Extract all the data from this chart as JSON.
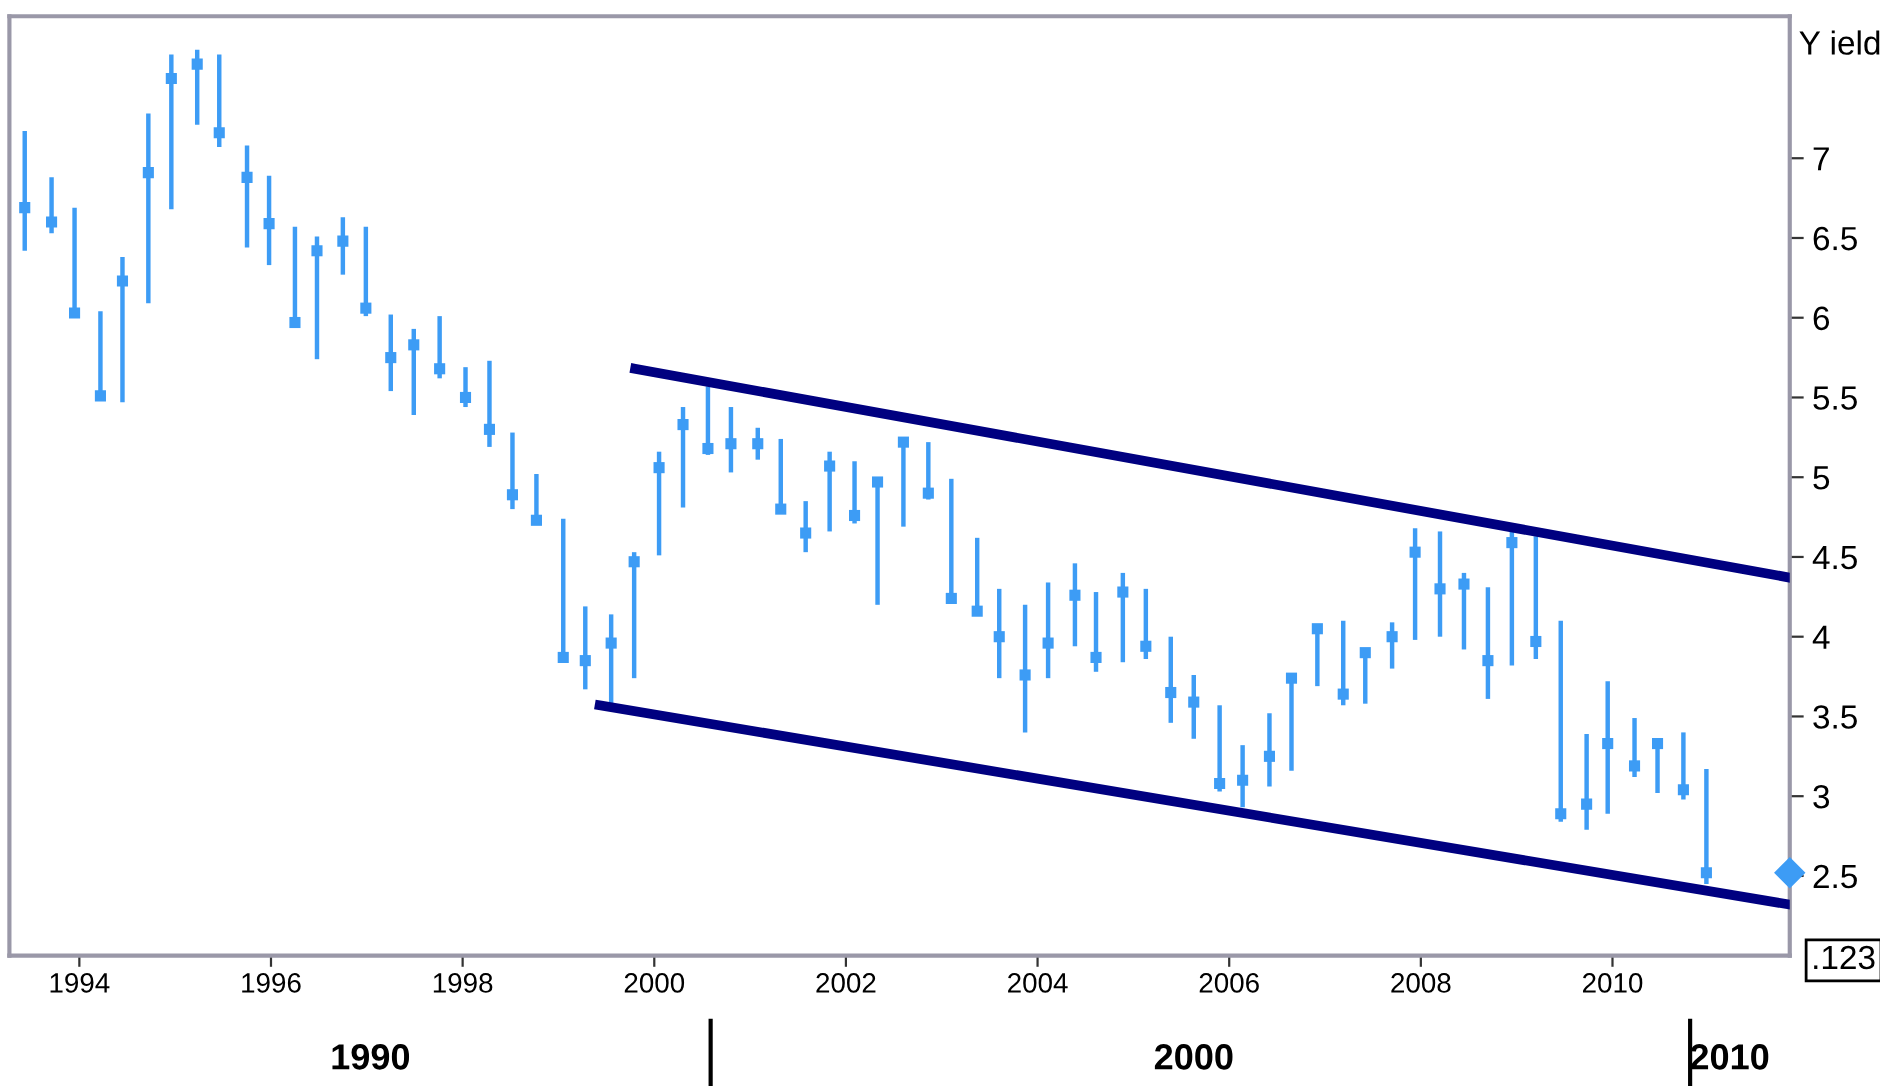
{
  "chart_data": {
    "type": "scatter",
    "ylabel": "Y ield",
    "annotations": [
      ".123",
      "1990",
      "2000",
      "2010"
    ],
    "xlim": [
      1993.27,
      2011.85
    ],
    "ylim": [
      2.0,
      7.89
    ],
    "xticks": [
      1994,
      1996,
      1998,
      2000,
      2002,
      2004,
      2006,
      2008,
      2010
    ],
    "yticks": [
      2.5,
      3,
      3.5,
      4,
      4.5,
      5,
      5.5,
      6,
      6.5,
      7
    ],
    "grid": false,
    "legend": false,
    "series": [
      {
        "color": "#3d9cf5",
        "marker": "square",
        "x": [
          1993.43,
          1993.71,
          1993.95,
          1994.22,
          1994.45,
          1994.72,
          1994.96,
          1995.23,
          1995.46,
          1995.75,
          1995.98,
          1996.25,
          1996.48,
          1996.75,
          1996.99,
          1997.25,
          1997.49,
          1997.76,
          1998.03,
          1998.28,
          1998.52,
          1998.77,
          1999.05,
          1999.28,
          1999.55,
          1999.79,
          2000.05,
          2000.3,
          2000.56,
          2000.8,
          2001.08,
          2001.32,
          2001.58,
          2001.83,
          2002.09,
          2002.33,
          2002.6,
          2002.86,
          2003.1,
          2003.37,
          2003.6,
          2003.87,
          2004.11,
          2004.39,
          2004.61,
          2004.89,
          2005.13,
          2005.39,
          2005.63,
          2005.9,
          2006.14,
          2006.42,
          2006.65,
          2006.92,
          2007.19,
          2007.42,
          2007.7,
          2007.94,
          2008.2,
          2008.45,
          2008.7,
          2008.95,
          2009.2,
          2009.46,
          2009.73,
          2009.95,
          2010.23,
          2010.47,
          2010.74,
          2010.98
        ],
        "values": [
          6.69,
          6.6,
          6.03,
          5.51,
          6.23,
          6.91,
          7.5,
          7.59,
          7.16,
          6.88,
          6.59,
          5.97,
          6.42,
          6.48,
          6.06,
          5.75,
          5.83,
          5.68,
          5.5,
          5.3,
          4.89,
          4.73,
          3.87,
          3.85,
          3.96,
          4.47,
          5.06,
          5.33,
          5.18,
          5.21,
          5.21,
          4.8,
          4.65,
          5.07,
          4.76,
          4.97,
          5.22,
          4.9,
          4.24,
          4.16,
          4.0,
          3.76,
          3.96,
          4.26,
          3.87,
          4.28,
          3.94,
          3.65,
          3.59,
          3.08,
          3.1,
          3.25,
          3.74,
          4.05,
          3.64,
          3.9,
          4.0,
          4.53,
          4.3,
          4.33,
          3.85,
          4.59,
          3.97,
          2.89,
          2.95,
          3.33,
          3.19,
          3.33,
          3.04,
          2.52
        ],
        "errors": [
          [
            6.42,
            7.17
          ],
          [
            6.53,
            6.88
          ],
          [
            6.0,
            6.69
          ],
          [
            5.5,
            6.04
          ],
          [
            5.47,
            6.38
          ],
          [
            6.09,
            7.28
          ],
          [
            6.68,
            7.65
          ],
          [
            7.21,
            7.68
          ],
          [
            7.07,
            7.65
          ],
          [
            6.44,
            7.08
          ],
          [
            6.33,
            6.89
          ],
          [
            5.96,
            6.57
          ],
          [
            5.74,
            6.51
          ],
          [
            6.27,
            6.63
          ],
          [
            6.01,
            6.57
          ],
          [
            5.54,
            6.02
          ],
          [
            5.39,
            5.93
          ],
          [
            5.62,
            6.01
          ],
          [
            5.44,
            5.69
          ],
          [
            5.19,
            5.73
          ],
          [
            4.8,
            5.28
          ],
          [
            4.71,
            5.02
          ],
          [
            3.84,
            4.74
          ],
          [
            3.67,
            4.19
          ],
          [
            3.58,
            4.14
          ],
          [
            3.74,
            4.53
          ],
          [
            4.51,
            5.16
          ],
          [
            4.81,
            5.44
          ],
          [
            5.14,
            5.57
          ],
          [
            5.03,
            5.44
          ],
          [
            5.11,
            5.31
          ],
          [
            4.78,
            5.24
          ],
          [
            4.53,
            4.85
          ],
          [
            4.66,
            5.16
          ],
          [
            4.71,
            5.1
          ],
          [
            4.2,
            4.98
          ],
          [
            4.69,
            5.24
          ],
          [
            4.86,
            5.22
          ],
          [
            4.22,
            4.99
          ],
          [
            4.15,
            4.62
          ],
          [
            3.74,
            4.3
          ],
          [
            3.4,
            4.2
          ],
          [
            3.74,
            4.34
          ],
          [
            3.94,
            4.46
          ],
          [
            3.78,
            4.28
          ],
          [
            3.84,
            4.4
          ],
          [
            3.86,
            4.3
          ],
          [
            3.46,
            4.0
          ],
          [
            3.36,
            3.76
          ],
          [
            3.03,
            3.57
          ],
          [
            2.93,
            3.32
          ],
          [
            3.06,
            3.52
          ],
          [
            3.16,
            3.74
          ],
          [
            3.69,
            4.05
          ],
          [
            3.57,
            4.1
          ],
          [
            3.58,
            3.91
          ],
          [
            3.8,
            4.09
          ],
          [
            3.98,
            4.68
          ],
          [
            4.0,
            4.66
          ],
          [
            3.92,
            4.4
          ],
          [
            3.61,
            4.31
          ],
          [
            3.82,
            4.67
          ],
          [
            3.86,
            4.63
          ],
          [
            2.84,
            4.1
          ],
          [
            2.79,
            3.39
          ],
          [
            2.89,
            3.72
          ],
          [
            3.12,
            3.49
          ],
          [
            3.02,
            3.34
          ],
          [
            2.98,
            3.4
          ],
          [
            2.45,
            3.17
          ]
        ]
      },
      {
        "type": "line",
        "color": "#000080",
        "x": [
          1999.8,
          2011.85
        ],
        "values": [
          5.68,
          4.37
        ]
      },
      {
        "type": "line",
        "color": "#000080",
        "x": [
          1999.43,
          2011.85
        ],
        "values": [
          3.57,
          2.32
        ]
      }
    ]
  }
}
